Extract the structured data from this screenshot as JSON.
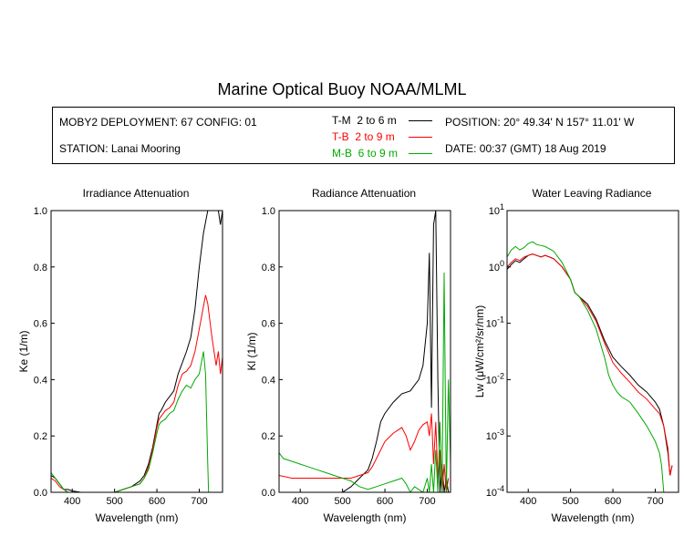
{
  "title": "Marine Optical Buoy NOAA/MLML",
  "info": {
    "deployment": "MOBY2 DEPLOYMENT: 67 CONFIG: 01",
    "station": "STATION: Lanai Mooring",
    "position": "POSITION: 20° 49.34' N   157° 11.01' W",
    "date": "DATE: 00:37 (GMT) 18 Aug 2019"
  },
  "legend": [
    {
      "name": "T-M",
      "range": "2 to 6  m",
      "color": "#000000"
    },
    {
      "name": "T-B",
      "range": "2 to 9  m",
      "color": "#ff0000"
    },
    {
      "name": "M-B",
      "range": "6 to 9  m",
      "color": "#00aa00"
    }
  ],
  "chart_data": [
    {
      "type": "line",
      "title": "Irradiance Attenuation",
      "xlabel": "Wavelength (nm)",
      "ylabel": "Ke  (1/m)",
      "xlim": [
        350,
        755
      ],
      "ylim": [
        0,
        1.0
      ],
      "xticks": [
        400,
        500,
        600,
        700
      ],
      "yticks": [
        "0.0",
        "0.2",
        "0.4",
        "0.6",
        "0.8",
        "1.0"
      ],
      "ytick_values": [
        0,
        0.2,
        0.4,
        0.6,
        0.8,
        1.0
      ],
      "series": [
        {
          "name": "T-M",
          "color": "#000000",
          "x": [
            350,
            360,
            370,
            380,
            390,
            400,
            420,
            440,
            460,
            480,
            500,
            520,
            540,
            560,
            570,
            580,
            590,
            600,
            605,
            610,
            620,
            630,
            640,
            650,
            660,
            670,
            680,
            690,
            700,
            710,
            720,
            730,
            740,
            745,
            750,
            755
          ],
          "y": [
            0.06,
            0.05,
            0.03,
            0.01,
            0.01,
            0.005,
            0.0,
            0.0,
            0.0,
            0.0,
            0.0,
            0.01,
            0.02,
            0.04,
            0.06,
            0.1,
            0.16,
            0.24,
            0.28,
            0.29,
            0.32,
            0.34,
            0.36,
            0.42,
            0.46,
            0.5,
            0.55,
            0.65,
            0.8,
            0.92,
            1.0,
            1.02,
            1.1,
            1.0,
            0.95,
            1.05
          ]
        },
        {
          "name": "T-B",
          "color": "#ff0000",
          "x": [
            350,
            360,
            370,
            380,
            390,
            400,
            420,
            440,
            460,
            480,
            500,
            520,
            540,
            560,
            570,
            580,
            590,
            600,
            605,
            610,
            620,
            630,
            640,
            650,
            660,
            670,
            680,
            690,
            700,
            710,
            715,
            720,
            730,
            740,
            745,
            750,
            755
          ],
          "y": [
            0.05,
            0.04,
            0.02,
            0.01,
            0.0,
            0.0,
            0.0,
            0.0,
            0.0,
            0.0,
            0.0,
            0.01,
            0.02,
            0.03,
            0.05,
            0.09,
            0.15,
            0.23,
            0.26,
            0.27,
            0.29,
            0.3,
            0.32,
            0.38,
            0.42,
            0.43,
            0.45,
            0.5,
            0.58,
            0.66,
            0.7,
            0.67,
            0.55,
            0.45,
            0.5,
            0.42,
            0.48
          ]
        },
        {
          "name": "M-B",
          "color": "#00aa00",
          "x": [
            350,
            360,
            370,
            380,
            390,
            400,
            420,
            440,
            460,
            480,
            500,
            520,
            540,
            560,
            570,
            580,
            590,
            600,
            605,
            610,
            620,
            630,
            640,
            650,
            660,
            670,
            680,
            690,
            700,
            710,
            715,
            720,
            722,
            725,
            730,
            740,
            750
          ],
          "y": [
            0.07,
            0.05,
            0.03,
            0.01,
            0.0,
            0.0,
            0.0,
            0.0,
            0.0,
            0.0,
            0.0,
            0.01,
            0.02,
            0.03,
            0.05,
            0.08,
            0.14,
            0.21,
            0.24,
            0.25,
            0.26,
            0.28,
            0.29,
            0.33,
            0.36,
            0.38,
            0.37,
            0.4,
            0.42,
            0.5,
            0.42,
            0.1,
            0.0,
            0.0,
            0.0,
            0.0,
            0.0
          ]
        }
      ]
    },
    {
      "type": "line",
      "title": "Radiance Attenuation",
      "xlabel": "Wavelength (nm)",
      "ylabel": "Kl  (1/m)",
      "xlim": [
        350,
        755
      ],
      "ylim": [
        0,
        1.0
      ],
      "xticks": [
        400,
        500,
        600,
        700
      ],
      "yticks": [
        "0.0",
        "0.2",
        "0.4",
        "0.6",
        "0.8",
        "1.0"
      ],
      "ytick_values": [
        0,
        0.2,
        0.4,
        0.6,
        0.8,
        1.0
      ],
      "series": [
        {
          "name": "T-M",
          "color": "#000000",
          "x": [
            350,
            380,
            420,
            460,
            500,
            520,
            540,
            560,
            570,
            580,
            590,
            600,
            620,
            640,
            660,
            670,
            680,
            690,
            700,
            705,
            710,
            715,
            720,
            725,
            730,
            735,
            740,
            745,
            750
          ],
          "y": [
            0.0,
            0.0,
            0.0,
            0.0,
            0.0,
            0.02,
            0.05,
            0.08,
            0.12,
            0.18,
            0.25,
            0.28,
            0.32,
            0.35,
            0.36,
            0.38,
            0.4,
            0.45,
            0.6,
            0.85,
            0.3,
            0.95,
            1.0,
            0.4,
            0.0,
            0.1,
            0.0,
            0.05,
            0.0
          ]
        },
        {
          "name": "T-B",
          "color": "#ff0000",
          "x": [
            350,
            380,
            420,
            460,
            500,
            520,
            540,
            560,
            570,
            580,
            590,
            600,
            620,
            640,
            650,
            660,
            670,
            680,
            690,
            700,
            705,
            710,
            715,
            720,
            725,
            730,
            735,
            740,
            745,
            750
          ],
          "y": [
            0.06,
            0.05,
            0.05,
            0.05,
            0.05,
            0.05,
            0.06,
            0.07,
            0.09,
            0.12,
            0.15,
            0.18,
            0.21,
            0.23,
            0.2,
            0.15,
            0.18,
            0.22,
            0.24,
            0.25,
            0.2,
            0.28,
            0.1,
            0.25,
            0.05,
            0.15,
            0.0,
            0.1,
            0.0,
            0.05
          ]
        },
        {
          "name": "M-B",
          "color": "#00aa00",
          "x": [
            350,
            360,
            380,
            400,
            420,
            440,
            460,
            480,
            500,
            520,
            540,
            560,
            580,
            600,
            620,
            640,
            650,
            660,
            670,
            680,
            690,
            700,
            705,
            710,
            715,
            720,
            725,
            730,
            735,
            740,
            745,
            750,
            755
          ],
          "y": [
            0.14,
            0.12,
            0.11,
            0.1,
            0.09,
            0.08,
            0.07,
            0.06,
            0.05,
            0.04,
            0.02,
            0.01,
            0.02,
            0.03,
            0.04,
            0.05,
            0.03,
            0.0,
            0.02,
            0.01,
            0.0,
            0.05,
            0.0,
            0.1,
            0.0,
            0.15,
            0.0,
            0.25,
            0.0,
            0.78,
            0.0,
            0.4,
            0.1
          ]
        }
      ]
    },
    {
      "type": "line",
      "title": "Water Leaving Radiance",
      "xlabel": "Wavelength (nm)",
      "ylabel": "Lw  (μW/cm²/sr/nm)",
      "xscale": "linear",
      "yscale": "log",
      "xlim": [
        350,
        755
      ],
      "ylim": [
        0.0001,
        10
      ],
      "xticks": [
        400,
        500,
        600,
        700
      ],
      "ytick_values": [
        0.0001,
        0.001,
        0.01,
        0.1,
        1,
        10
      ],
      "ytick_labels": [
        [
          "10",
          "-4"
        ],
        [
          "10",
          "-3"
        ],
        [
          "10",
          "-2"
        ],
        [
          "10",
          "-1"
        ],
        [
          "10",
          "0"
        ],
        [
          "10",
          "1"
        ]
      ],
      "series": [
        {
          "name": "T-M",
          "color": "#000000",
          "x": [
            350,
            360,
            370,
            380,
            390,
            400,
            410,
            420,
            430,
            440,
            450,
            460,
            480,
            500,
            510,
            520,
            540,
            560,
            580,
            600,
            620,
            640,
            660,
            680,
            700,
            710,
            720,
            730,
            735,
            740
          ],
          "y": [
            0.9,
            1.1,
            1.3,
            1.2,
            1.4,
            1.6,
            1.7,
            1.6,
            1.5,
            1.6,
            1.5,
            1.4,
            1.0,
            0.6,
            0.35,
            0.3,
            0.22,
            0.12,
            0.05,
            0.025,
            0.017,
            0.012,
            0.008,
            0.006,
            0.004,
            0.003,
            0.0015,
            0.0005,
            0.0002,
            0.0003
          ]
        },
        {
          "name": "T-B",
          "color": "#ff0000",
          "x": [
            350,
            360,
            370,
            380,
            390,
            400,
            410,
            420,
            430,
            440,
            450,
            460,
            480,
            500,
            510,
            520,
            540,
            560,
            580,
            600,
            620,
            640,
            660,
            680,
            700,
            710,
            720,
            730,
            735,
            740
          ],
          "y": [
            1.0,
            1.2,
            1.4,
            1.3,
            1.5,
            1.6,
            1.7,
            1.6,
            1.5,
            1.6,
            1.5,
            1.4,
            1.0,
            0.6,
            0.35,
            0.3,
            0.2,
            0.11,
            0.045,
            0.02,
            0.013,
            0.009,
            0.006,
            0.0045,
            0.003,
            0.0025,
            0.0015,
            0.0006,
            0.0002,
            0.0003
          ]
        },
        {
          "name": "M-B",
          "color": "#00aa00",
          "x": [
            350,
            360,
            370,
            380,
            390,
            400,
            410,
            420,
            430,
            440,
            450,
            460,
            480,
            500,
            510,
            520,
            540,
            560,
            580,
            590,
            600,
            610,
            620,
            640,
            660,
            680,
            700,
            710,
            715,
            720
          ],
          "y": [
            1.5,
            2.0,
            2.3,
            2.0,
            2.2,
            2.6,
            2.8,
            2.5,
            2.4,
            2.3,
            2.1,
            1.9,
            1.2,
            0.6,
            0.35,
            0.3,
            0.17,
            0.08,
            0.025,
            0.012,
            0.008,
            0.006,
            0.005,
            0.004,
            0.0025,
            0.0015,
            0.0008,
            0.0005,
            0.0003,
            0.0001
          ]
        }
      ]
    }
  ]
}
